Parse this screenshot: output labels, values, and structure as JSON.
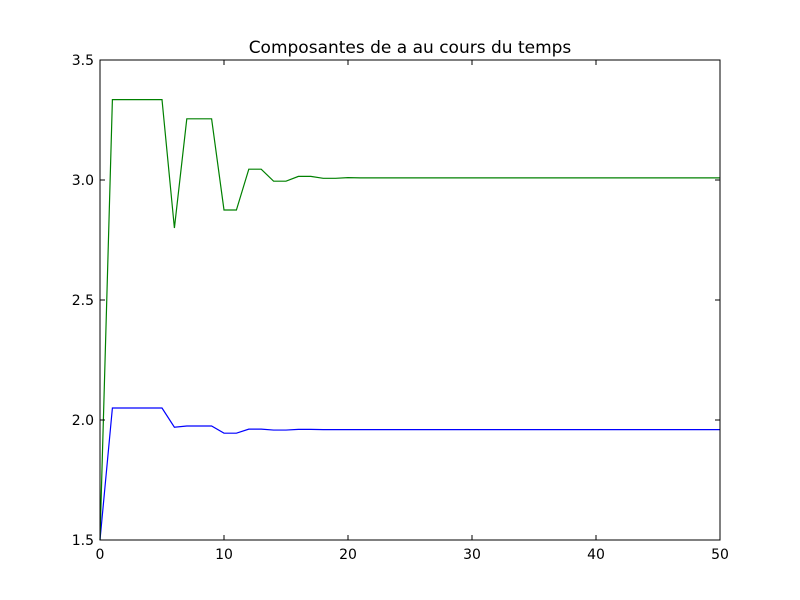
{
  "chart_data": {
    "type": "line",
    "title": "Composantes de a au cours du temps",
    "xlabel": "",
    "ylabel": "",
    "xlim": [
      0,
      50
    ],
    "ylim": [
      1.5,
      3.5
    ],
    "xticks": [
      0,
      10,
      20,
      30,
      40,
      50
    ],
    "xtick_labels": [
      "0",
      "10",
      "20",
      "30",
      "40",
      "50"
    ],
    "yticks": [
      1.5,
      2.0,
      2.5,
      3.0,
      3.5
    ],
    "ytick_labels": [
      "1.5",
      "2.0",
      "2.5",
      "3.0",
      "3.5"
    ],
    "grid": false,
    "x": [
      0,
      1,
      2,
      3,
      4,
      5,
      6,
      7,
      8,
      9,
      10,
      11,
      12,
      13,
      14,
      15,
      16,
      17,
      18,
      19,
      20,
      21,
      22,
      23,
      24,
      25,
      26,
      27,
      28,
      29,
      30,
      31,
      32,
      33,
      34,
      35,
      36,
      37,
      38,
      39,
      40,
      41,
      42,
      43,
      44,
      45,
      46,
      47,
      48,
      49,
      50
    ],
    "series": [
      {
        "color": "#0000ff",
        "values": [
          1.5,
          2.05,
          2.05,
          2.05,
          2.05,
          2.05,
          1.97,
          1.975,
          1.975,
          1.975,
          1.945,
          1.945,
          1.962,
          1.962,
          1.958,
          1.958,
          1.961,
          1.961,
          1.96,
          1.96,
          1.96,
          1.96,
          1.96,
          1.96,
          1.96,
          1.96,
          1.96,
          1.96,
          1.96,
          1.96,
          1.96,
          1.96,
          1.96,
          1.96,
          1.96,
          1.96,
          1.96,
          1.96,
          1.96,
          1.96,
          1.96,
          1.96,
          1.96,
          1.96,
          1.96,
          1.96,
          1.96,
          1.96,
          1.96,
          1.96,
          1.96
        ]
      },
      {
        "color": "#008000",
        "values": [
          1.5,
          3.335,
          3.335,
          3.335,
          3.335,
          3.335,
          2.8,
          3.255,
          3.255,
          3.255,
          2.875,
          2.875,
          3.045,
          3.045,
          2.995,
          2.995,
          3.015,
          3.015,
          3.007,
          3.007,
          3.01,
          3.009,
          3.009,
          3.009,
          3.009,
          3.009,
          3.009,
          3.009,
          3.009,
          3.009,
          3.009,
          3.009,
          3.009,
          3.009,
          3.009,
          3.009,
          3.009,
          3.009,
          3.009,
          3.009,
          3.009,
          3.009,
          3.009,
          3.009,
          3.009,
          3.009,
          3.009,
          3.009,
          3.009,
          3.009,
          3.009
        ]
      }
    ]
  }
}
